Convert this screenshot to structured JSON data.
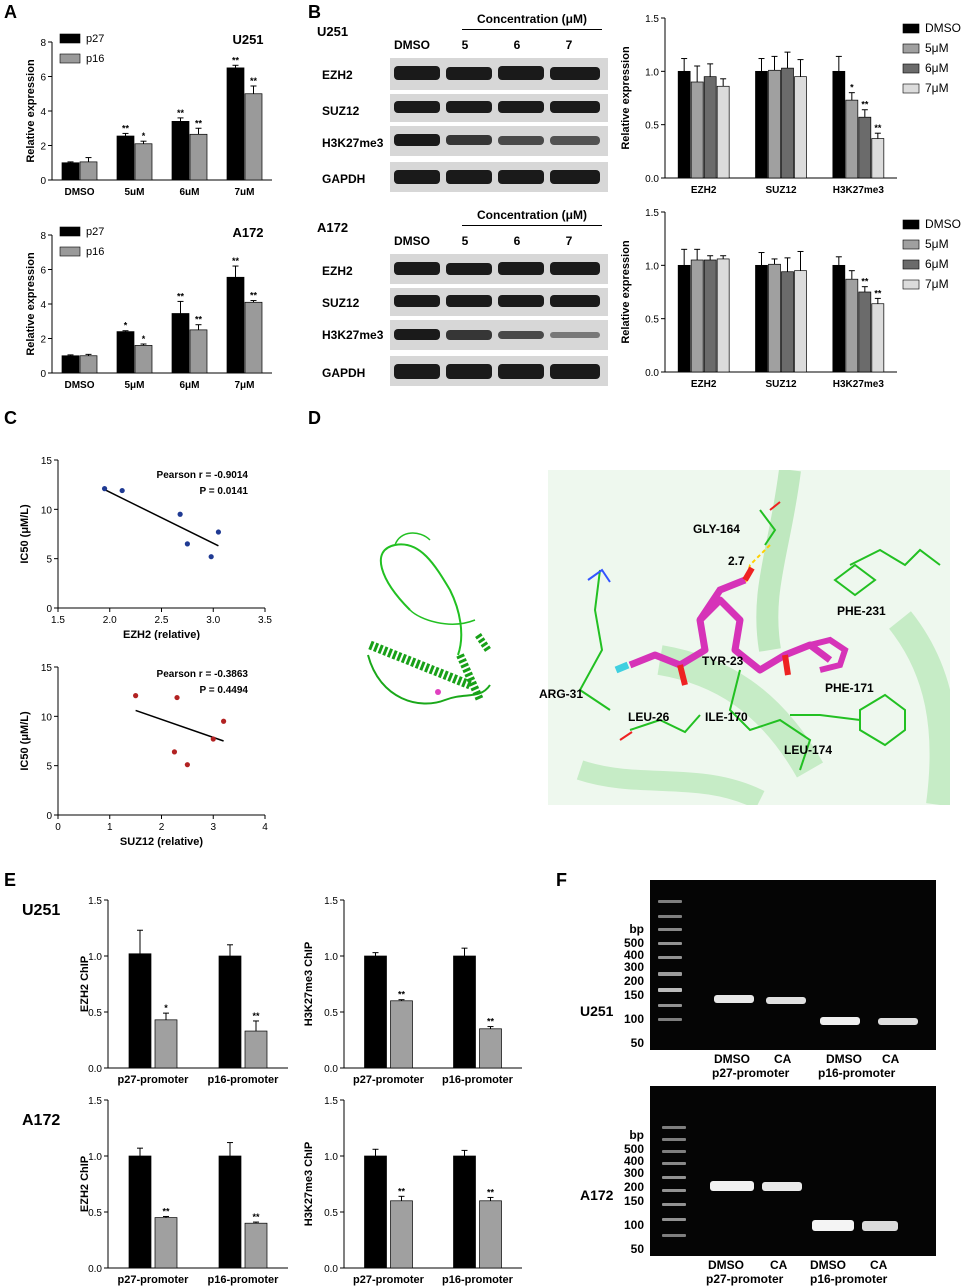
{
  "panel_labels": {
    "A": "A",
    "B": "B",
    "C": "C",
    "D": "D",
    "E": "E",
    "F": "F"
  },
  "colors": {
    "black_bar": "#000000",
    "gray_bar": "#9a9a9a",
    "dark_gray": "#6b6b6b",
    "light_gray": "#dcdcdc",
    "dot_blue": "#1f3a93",
    "dot_red": "#b22222",
    "ligand": "#e040c0",
    "protein": "#22c022"
  },
  "chart_data": [
    {
      "id": "A-U251",
      "type": "bar",
      "title": "U251",
      "categories": [
        "DMSO",
        "5μM",
        "6μM",
        "7μM"
      ],
      "series": [
        {
          "name": "p27",
          "color": "#000000",
          "values": [
            1.0,
            2.55,
            3.4,
            6.5
          ],
          "errors": [
            0.05,
            0.15,
            0.2,
            0.15
          ]
        },
        {
          "name": "p16",
          "color": "#9a9a9a",
          "values": [
            1.05,
            2.1,
            2.65,
            5.0
          ],
          "errors": [
            0.25,
            0.15,
            0.35,
            0.45
          ]
        }
      ],
      "annotations": [
        [
          "",
          "**",
          "**",
          "**"
        ],
        [
          "",
          "*",
          "**",
          "**"
        ]
      ],
      "ylabel": "Relative expression",
      "ylim": [
        0,
        8
      ],
      "yticks": [
        0,
        2,
        4,
        6,
        8
      ]
    },
    {
      "id": "A-A172",
      "type": "bar",
      "title": "A172",
      "categories": [
        "DMSO",
        "5μM",
        "6μM",
        "7μM"
      ],
      "series": [
        {
          "name": "p27",
          "color": "#000000",
          "values": [
            1.0,
            2.4,
            3.45,
            5.55
          ],
          "errors": [
            0.05,
            0.05,
            0.7,
            0.65
          ]
        },
        {
          "name": "p16",
          "color": "#9a9a9a",
          "values": [
            1.0,
            1.6,
            2.5,
            4.1
          ],
          "errors": [
            0.08,
            0.08,
            0.3,
            0.1
          ]
        }
      ],
      "annotations": [
        [
          "",
          "*",
          "**",
          "**"
        ],
        [
          "",
          "*",
          "**",
          "**"
        ]
      ],
      "ylabel": "Relative expression",
      "ylim": [
        0,
        8
      ],
      "yticks": [
        0,
        2,
        4,
        6,
        8
      ]
    },
    {
      "id": "B-U251",
      "type": "bar",
      "categories": [
        "EZH2",
        "SUZ12",
        "H3K27me3"
      ],
      "series": [
        {
          "name": "DMSO",
          "color": "#000000",
          "values": [
            1.0,
            1.0,
            1.0
          ],
          "errors": [
            0.12,
            0.12,
            0.14
          ]
        },
        {
          "name": "5μM",
          "color": "#a0a0a0",
          "values": [
            0.9,
            1.01,
            0.73
          ],
          "errors": [
            0.15,
            0.13,
            0.07
          ]
        },
        {
          "name": "6μM",
          "color": "#6b6b6b",
          "values": [
            0.95,
            1.03,
            0.57
          ],
          "errors": [
            0.12,
            0.15,
            0.07
          ]
        },
        {
          "name": "7μM",
          "color": "#dcdcdc",
          "values": [
            0.86,
            0.95,
            0.37
          ],
          "errors": [
            0.07,
            0.16,
            0.05
          ]
        }
      ],
      "annotations": [
        [
          "",
          "",
          ""
        ],
        [
          "",
          "",
          "*"
        ],
        [
          "",
          "",
          "**"
        ],
        [
          "",
          "",
          "**"
        ]
      ],
      "ylabel": "Relative expression",
      "ylim": [
        0,
        1.5
      ],
      "yticks": [
        "0.0",
        "0.5",
        "1.0",
        "1.5"
      ]
    },
    {
      "id": "B-A172",
      "type": "bar",
      "categories": [
        "EZH2",
        "SUZ12",
        "H3K27me3"
      ],
      "series": [
        {
          "name": "DMSO",
          "color": "#000000",
          "values": [
            1.0,
            1.0,
            1.0
          ],
          "errors": [
            0.15,
            0.12,
            0.08
          ]
        },
        {
          "name": "5μM",
          "color": "#a0a0a0",
          "values": [
            1.05,
            1.01,
            0.87
          ],
          "errors": [
            0.1,
            0.05,
            0.08
          ]
        },
        {
          "name": "6μM",
          "color": "#6b6b6b",
          "values": [
            1.05,
            0.94,
            0.75
          ],
          "errors": [
            0.04,
            0.13,
            0.05
          ]
        },
        {
          "name": "7μM",
          "color": "#dcdcdc",
          "values": [
            1.06,
            0.95,
            0.64
          ],
          "errors": [
            0.03,
            0.18,
            0.05
          ]
        }
      ],
      "annotations": [
        [
          "",
          "",
          ""
        ],
        [
          "",
          "",
          ""
        ],
        [
          "",
          "",
          "**"
        ],
        [
          "",
          "",
          "**"
        ]
      ],
      "ylabel": "Relative expression",
      "ylim": [
        0,
        1.5
      ],
      "yticks": [
        "0.0",
        "0.5",
        "1.0",
        "1.5"
      ]
    },
    {
      "id": "C-EZH2",
      "type": "scatter",
      "x": [
        1.95,
        2.12,
        2.68,
        2.75,
        2.98,
        3.05
      ],
      "y": [
        12.1,
        11.9,
        9.5,
        6.5,
        5.2,
        7.7
      ],
      "fit": [
        [
          1.95,
          12.0
        ],
        [
          3.05,
          6.3
        ]
      ],
      "xlabel": "EZH2 (relative)",
      "ylabel": "IC50 (μM/L)",
      "xlim": [
        1.5,
        3.5
      ],
      "ylim": [
        0,
        15
      ],
      "xticks": [
        "1.5",
        "2.0",
        "2.5",
        "3.0",
        "3.5"
      ],
      "yticks": [
        "0",
        "5",
        "10",
        "15"
      ],
      "stats": [
        "Pearson r = -0.9014",
        "P = 0.0141"
      ]
    },
    {
      "id": "C-SUZ12",
      "type": "scatter",
      "x": [
        1.5,
        2.3,
        2.25,
        2.5,
        3.0,
        3.2
      ],
      "y": [
        12.1,
        11.9,
        6.4,
        5.1,
        7.7,
        9.5
      ],
      "fit": [
        [
          1.5,
          10.6
        ],
        [
          3.2,
          7.5
        ]
      ],
      "xlabel": "SUZ12 (relative)",
      "ylabel": "IC50 (μM/L)",
      "xlim": [
        0,
        4
      ],
      "ylim": [
        0,
        15
      ],
      "xticks": [
        "0",
        "1",
        "2",
        "3",
        "4"
      ],
      "yticks": [
        "0",
        "5",
        "10",
        "15"
      ],
      "stats": [
        "Pearson r = -0.3863",
        "P = 0.4494"
      ]
    },
    {
      "id": "E-U251-EZH2",
      "type": "bar",
      "categories": [
        "p27-promoter",
        "p16-promoter"
      ],
      "series": [
        {
          "color": "#000000",
          "values": [
            1.02,
            1.0
          ],
          "errors": [
            0.21,
            0.1
          ]
        },
        {
          "color": "#a0a0a0",
          "values": [
            0.43,
            0.33
          ],
          "errors": [
            0.06,
            0.09
          ]
        }
      ],
      "annotations": [
        [
          "",
          ""
        ],
        [
          "*",
          "**"
        ]
      ],
      "ylabel": "EZH2 ChIP",
      "ylim": [
        0,
        1.5
      ],
      "yticks": [
        "0.0",
        "0.5",
        "1.0",
        "1.5"
      ]
    },
    {
      "id": "E-U251-H3",
      "type": "bar",
      "categories": [
        "p27-promoter",
        "p16-promoter"
      ],
      "series": [
        {
          "color": "#000000",
          "values": [
            1.0,
            1.0
          ],
          "errors": [
            0.03,
            0.07
          ]
        },
        {
          "color": "#a0a0a0",
          "values": [
            0.6,
            0.35
          ],
          "errors": [
            0.01,
            0.02
          ]
        }
      ],
      "annotations": [
        [
          "",
          ""
        ],
        [
          "**",
          "**"
        ]
      ],
      "ylabel": "H3K27me3 ChIP",
      "ylim": [
        0,
        1.5
      ],
      "yticks": [
        "0.0",
        "0.5",
        "1.0",
        "1.5"
      ]
    },
    {
      "id": "E-A172-EZH2",
      "type": "bar",
      "categories": [
        "p27-promoter",
        "p16-promoter"
      ],
      "series": [
        {
          "color": "#000000",
          "values": [
            1.0,
            1.0
          ],
          "errors": [
            0.07,
            0.12
          ]
        },
        {
          "color": "#a0a0a0",
          "values": [
            0.45,
            0.4
          ],
          "errors": [
            0.01,
            0.01
          ]
        }
      ],
      "annotations": [
        [
          "",
          ""
        ],
        [
          "**",
          "**"
        ]
      ],
      "ylabel": "EZH2 ChIP",
      "ylim": [
        0,
        1.5
      ],
      "yticks": [
        "0.0",
        "0.5",
        "1.0",
        "1.5"
      ]
    },
    {
      "id": "E-A172-H3",
      "type": "bar",
      "categories": [
        "p27-promoter",
        "p16-promoter"
      ],
      "series": [
        {
          "color": "#000000",
          "values": [
            1.0,
            1.0
          ],
          "errors": [
            0.06,
            0.05
          ]
        },
        {
          "color": "#a0a0a0",
          "values": [
            0.6,
            0.6
          ],
          "errors": [
            0.04,
            0.03
          ]
        }
      ],
      "annotations": [
        [
          "",
          ""
        ],
        [
          "**",
          "**"
        ]
      ],
      "ylabel": "H3K27me3 ChIP",
      "ylim": [
        0,
        1.5
      ],
      "yticks": [
        "0.0",
        "0.5",
        "1.0",
        "1.5"
      ]
    }
  ],
  "blots": {
    "u251_cell": "U251",
    "a172_cell": "A172",
    "concentration_label": "Concentration (μM)",
    "lanes": [
      "DMSO",
      "5",
      "6",
      "7"
    ],
    "rows": [
      "EZH2",
      "SUZ12",
      "H3K27me3",
      "GAPDH"
    ]
  },
  "docking": {
    "residues": [
      "GLY-164",
      "PHE-231",
      "TYR-23",
      "PHE-171",
      "ARG-31",
      "LEU-26",
      "ILE-170",
      "LEU-174"
    ],
    "distance": "2.7"
  },
  "gels": {
    "u251": "U251",
    "a172": "A172",
    "bp": "bp",
    "ladder": [
      "500",
      "400",
      "300",
      "200",
      "150",
      "100",
      "50"
    ],
    "lanes": [
      "DMSO",
      "CA",
      "DMSO",
      "CA"
    ],
    "promoters": [
      "p27-promoter",
      "p16-promoter"
    ]
  }
}
